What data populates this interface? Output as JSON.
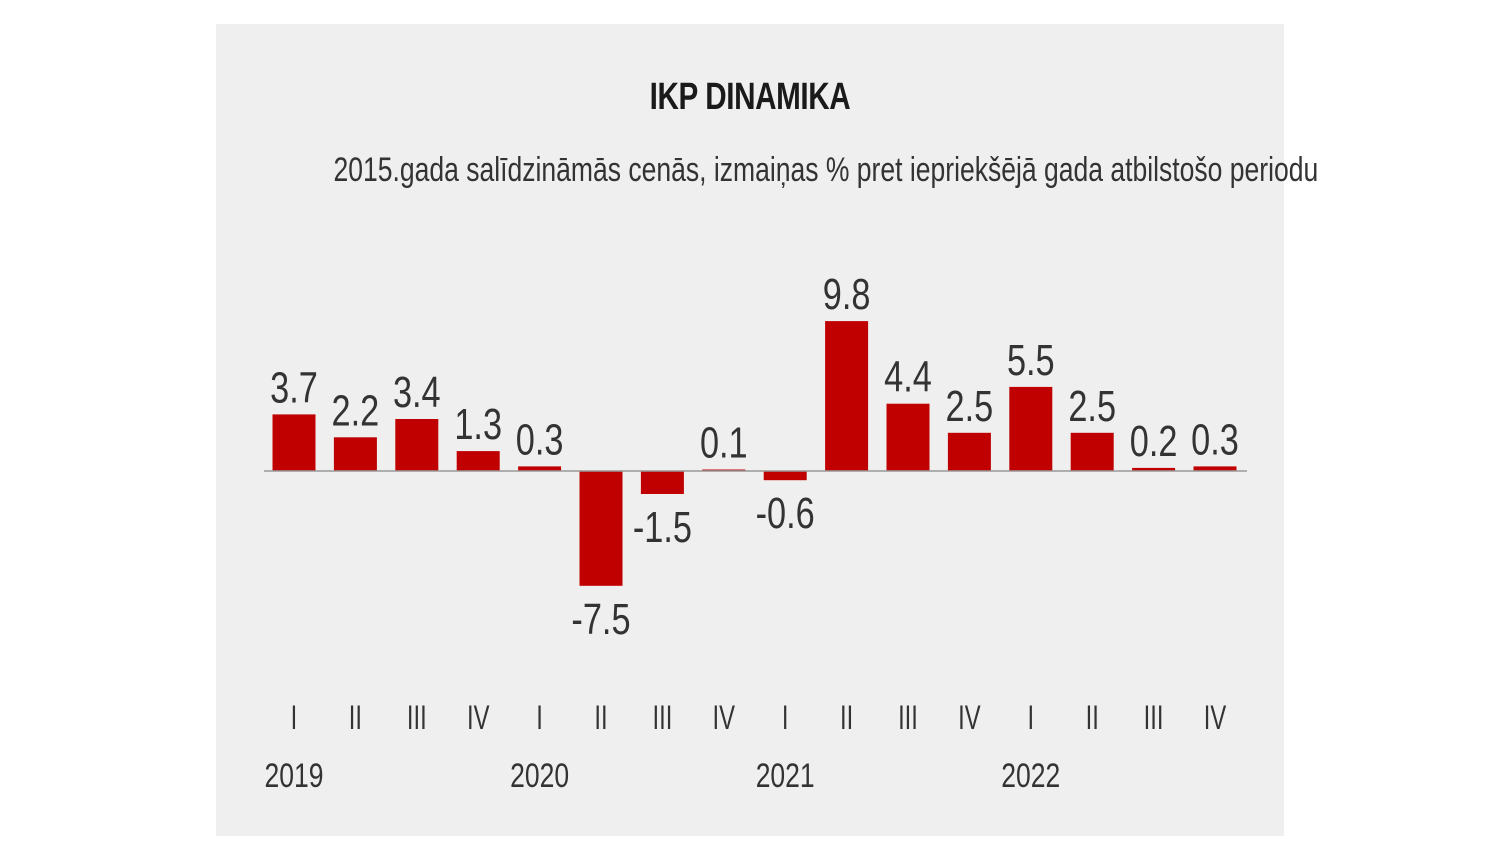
{
  "chart_data": {
    "type": "bar",
    "title": "IKP DINAMIKA",
    "subtitle": "2015.gada salīdzināmās cenās, izmaiņas % pret iepriekšējā gada atbilstošo periodu",
    "categories": [
      "I",
      "II",
      "III",
      "IV",
      "I",
      "II",
      "III",
      "IV",
      "I",
      "II",
      "III",
      "IV",
      "I",
      "II",
      "III",
      "IV"
    ],
    "years": [
      "2019",
      "2020",
      "2021",
      "2022"
    ],
    "values": [
      3.7,
      2.2,
      3.4,
      1.3,
      0.3,
      -7.5,
      -1.5,
      0.1,
      -0.6,
      9.8,
      4.4,
      2.5,
      5.5,
      2.5,
      0.2,
      0.3
    ],
    "value_labels": [
      "3.7",
      "2.2",
      "3.4",
      "1.3",
      "0.3",
      "-7.5",
      "-1.5",
      "0.1",
      "-0.6",
      "9.8",
      "4.4",
      "2.5",
      "5.5",
      "2.5",
      "0.2",
      "0.3"
    ],
    "xlabel": "",
    "ylabel": "",
    "grid": false,
    "legend": "none",
    "bar_color": "#c00000",
    "axis_color": "#999999"
  }
}
